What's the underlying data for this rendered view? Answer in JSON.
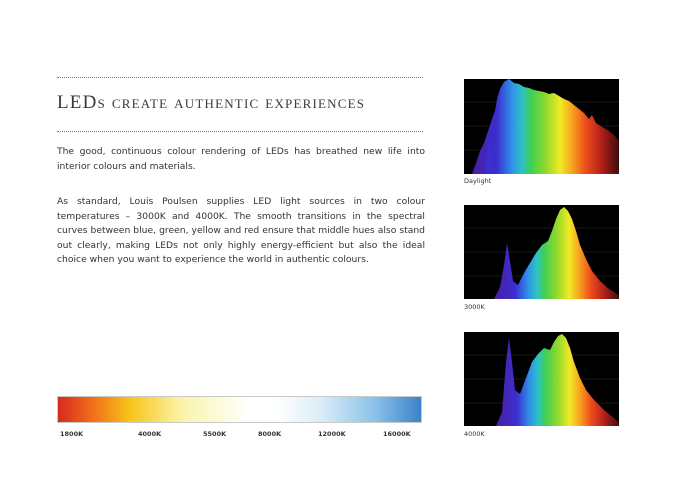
{
  "title": "LEDs create authentic experiences",
  "paragraphs": [
    "The good, continuous colour rendering of LEDs has breathed new life into interior colours and materials.",
    "As standard, Louis Poulsen supplies LED light sources in two colour temperatures – 3000K and 4000K. The smooth transitions in the spectral curves between blue, green, yellow and red ensure that middle hues also stand out clearly, making LEDs not only highly energy-efficient but also the ideal choice when you want to experience the world in authentic colours."
  ],
  "temperature_scale": {
    "labels": [
      "1800K",
      "4000K",
      "5500K",
      "8000K",
      "12000K",
      "16000K"
    ]
  },
  "spectra": [
    {
      "caption": "Daylight"
    },
    {
      "caption": "3000K"
    },
    {
      "caption": "4000K"
    }
  ]
}
